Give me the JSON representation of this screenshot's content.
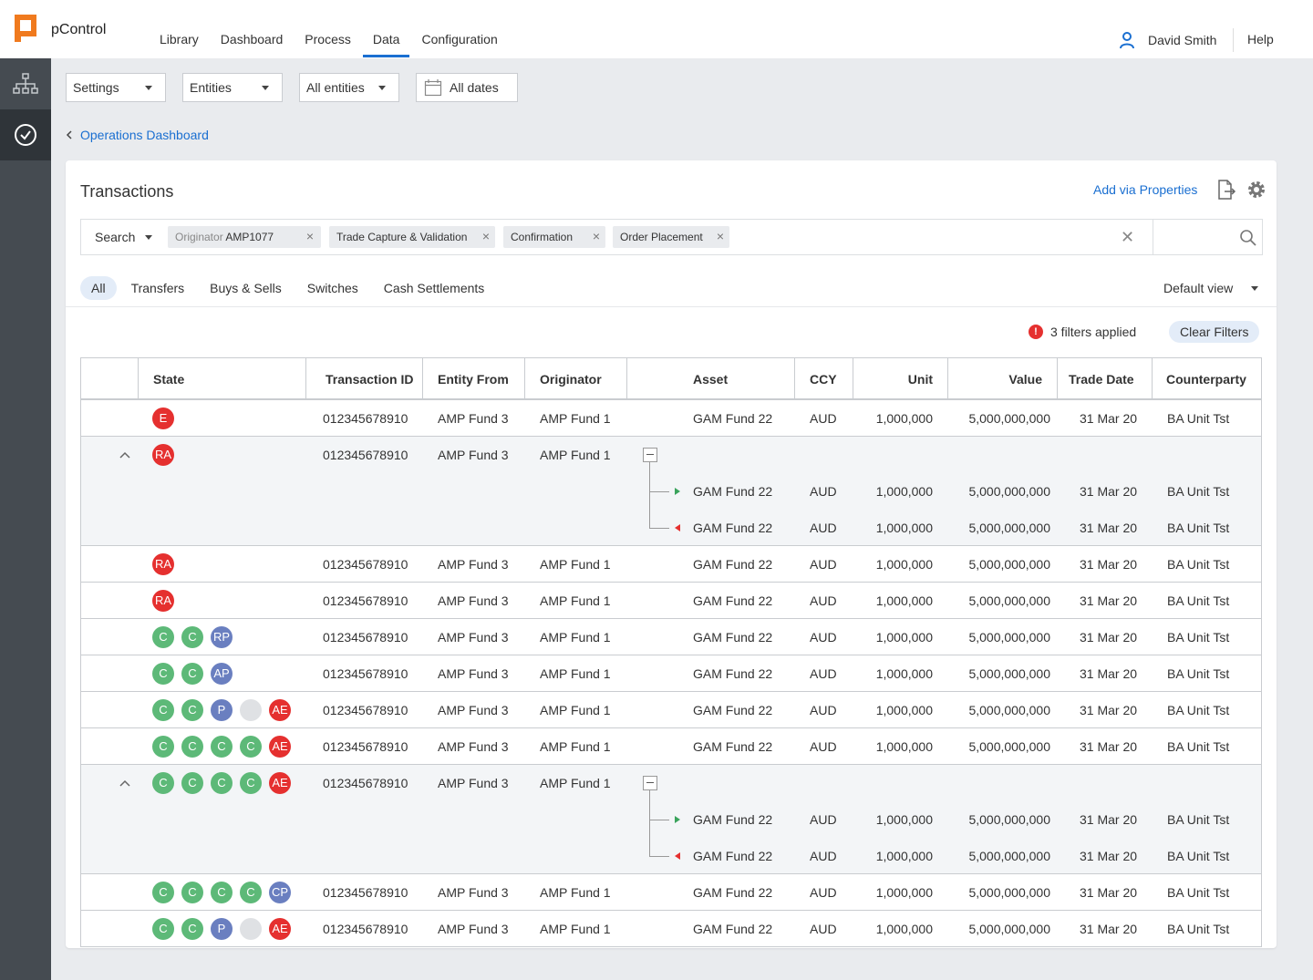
{
  "app": {
    "brand": "pControl"
  },
  "nav": [
    {
      "label": "Library",
      "active": false
    },
    {
      "label": "Dashboard",
      "active": false
    },
    {
      "label": "Process",
      "active": false
    },
    {
      "label": "Data",
      "active": true
    },
    {
      "label": "Configuration",
      "active": false
    }
  ],
  "user": {
    "name": "David Smith",
    "help": "Help"
  },
  "filters": {
    "settings": "Settings",
    "entities": "Entities",
    "all_entities": "All entities",
    "dates": "All dates"
  },
  "breadcrumb": "Operations Dashboard",
  "card": {
    "title": "Transactions",
    "add_via_properties": "Add via Properties"
  },
  "search": {
    "label": "Search",
    "chips": [
      {
        "prefix": "Originator",
        "value": "AMP1077"
      },
      {
        "prefix": "",
        "value": "Trade Capture & Validation"
      },
      {
        "prefix": "",
        "value": "Confirmation"
      },
      {
        "prefix": "",
        "value": "Order Placement"
      }
    ]
  },
  "tabs": [
    "All",
    "Transfers",
    "Buys & Sells",
    "Switches",
    "Cash Settlements"
  ],
  "view": "Default view",
  "filters_applied": {
    "icon": "!",
    "text": "3 filters applied",
    "clear": "Clear Filters"
  },
  "colors": {
    "accent": "#1a6fd1",
    "red": "#e5302f",
    "green": "#5db978",
    "blue": "#6a7fc0",
    "grey": "#dfe1e4",
    "sidebar": "#454b51"
  },
  "table": {
    "headers": [
      "State",
      "Transaction ID",
      "Entity From",
      "Originator",
      "Asset",
      "CCY",
      "Unit",
      "Value",
      "Trade Date",
      "Counterparty"
    ],
    "rows": [
      {
        "badges": [
          [
            "E",
            "red"
          ]
        ],
        "id": "012345678910",
        "entity": "AMP Fund 3",
        "orig": "AMP Fund 1",
        "asset": "GAM Fund 22",
        "ccy": "AUD",
        "unit": "1,000,000",
        "value": "5,000,000,000",
        "date": "31 Mar 20",
        "cp": "BA Unit Tst"
      },
      {
        "badges": [
          [
            "RA",
            "red"
          ]
        ],
        "id": "012345678910",
        "entity": "AMP Fund 3",
        "orig": "AMP Fund 1",
        "expanded": true,
        "legs": [
          {
            "dir": "in",
            "asset": "GAM Fund 22",
            "ccy": "AUD",
            "unit": "1,000,000",
            "value": "5,000,000,000",
            "date": "31 Mar 20",
            "cp": "BA Unit Tst"
          },
          {
            "dir": "out",
            "asset": "GAM Fund 22",
            "ccy": "AUD",
            "unit": "1,000,000",
            "value": "5,000,000,000",
            "date": "31 Mar 20",
            "cp": "BA Unit Tst"
          }
        ]
      },
      {
        "badges": [
          [
            "RA",
            "red"
          ]
        ],
        "id": "012345678910",
        "entity": "AMP Fund 3",
        "orig": "AMP Fund 1",
        "asset": "GAM Fund 22",
        "ccy": "AUD",
        "unit": "1,000,000",
        "value": "5,000,000,000",
        "date": "31 Mar 20",
        "cp": "BA Unit Tst"
      },
      {
        "badges": [
          [
            "RA",
            "red"
          ]
        ],
        "id": "012345678910",
        "entity": "AMP Fund 3",
        "orig": "AMP Fund 1",
        "asset": "GAM Fund 22",
        "ccy": "AUD",
        "unit": "1,000,000",
        "value": "5,000,000,000",
        "date": "31 Mar 20",
        "cp": "BA Unit Tst"
      },
      {
        "badges": [
          [
            "C",
            "green"
          ],
          [
            "C",
            "green"
          ],
          [
            "RP",
            "blue"
          ]
        ],
        "id": "012345678910",
        "entity": "AMP Fund 3",
        "orig": "AMP Fund 1",
        "asset": "GAM Fund 22",
        "ccy": "AUD",
        "unit": "1,000,000",
        "value": "5,000,000,000",
        "date": "31 Mar 20",
        "cp": "BA Unit Tst"
      },
      {
        "badges": [
          [
            "C",
            "green"
          ],
          [
            "C",
            "green"
          ],
          [
            "AP",
            "blue"
          ]
        ],
        "id": "012345678910",
        "entity": "AMP Fund 3",
        "orig": "AMP Fund 1",
        "asset": "GAM Fund 22",
        "ccy": "AUD",
        "unit": "1,000,000",
        "value": "5,000,000,000",
        "date": "31 Mar 20",
        "cp": "BA Unit Tst"
      },
      {
        "badges": [
          [
            "C",
            "green"
          ],
          [
            "C",
            "green"
          ],
          [
            "P",
            "blue"
          ],
          [
            "",
            "grey"
          ],
          [
            "AE",
            "red"
          ]
        ],
        "id": "012345678910",
        "entity": "AMP Fund 3",
        "orig": "AMP Fund 1",
        "asset": "GAM Fund 22",
        "ccy": "AUD",
        "unit": "1,000,000",
        "value": "5,000,000,000",
        "date": "31 Mar 20",
        "cp": "BA Unit Tst"
      },
      {
        "badges": [
          [
            "C",
            "green"
          ],
          [
            "C",
            "green"
          ],
          [
            "C",
            "green"
          ],
          [
            "C",
            "green"
          ],
          [
            "AE",
            "red"
          ]
        ],
        "id": "012345678910",
        "entity": "AMP Fund 3",
        "orig": "AMP Fund 1",
        "asset": "GAM Fund 22",
        "ccy": "AUD",
        "unit": "1,000,000",
        "value": "5,000,000,000",
        "date": "31 Mar 20",
        "cp": "BA Unit Tst"
      },
      {
        "badges": [
          [
            "C",
            "green"
          ],
          [
            "C",
            "green"
          ],
          [
            "C",
            "green"
          ],
          [
            "C",
            "green"
          ],
          [
            "AE",
            "red"
          ]
        ],
        "id": "012345678910",
        "entity": "AMP Fund 3",
        "orig": "AMP Fund 1",
        "expanded": true,
        "legs": [
          {
            "dir": "in",
            "asset": "GAM Fund 22",
            "ccy": "AUD",
            "unit": "1,000,000",
            "value": "5,000,000,000",
            "date": "31 Mar 20",
            "cp": "BA Unit Tst"
          },
          {
            "dir": "out",
            "asset": "GAM Fund 22",
            "ccy": "AUD",
            "unit": "1,000,000",
            "value": "5,000,000,000",
            "date": "31 Mar 20",
            "cp": "BA Unit Tst"
          }
        ]
      },
      {
        "badges": [
          [
            "C",
            "green"
          ],
          [
            "C",
            "green"
          ],
          [
            "C",
            "green"
          ],
          [
            "C",
            "green"
          ],
          [
            "CP",
            "blue"
          ]
        ],
        "id": "012345678910",
        "entity": "AMP Fund 3",
        "orig": "AMP Fund 1",
        "asset": "GAM Fund 22",
        "ccy": "AUD",
        "unit": "1,000,000",
        "value": "5,000,000,000",
        "date": "31 Mar 20",
        "cp": "BA Unit Tst"
      },
      {
        "badges": [
          [
            "C",
            "green"
          ],
          [
            "C",
            "green"
          ],
          [
            "P",
            "blue"
          ],
          [
            "",
            "grey"
          ],
          [
            "AE",
            "red"
          ]
        ],
        "id": "012345678910",
        "entity": "AMP Fund 3",
        "orig": "AMP Fund 1",
        "asset": "GAM Fund 22",
        "ccy": "AUD",
        "unit": "1,000,000",
        "value": "5,000,000,000",
        "date": "31 Mar 20",
        "cp": "BA Unit Tst"
      }
    ]
  }
}
